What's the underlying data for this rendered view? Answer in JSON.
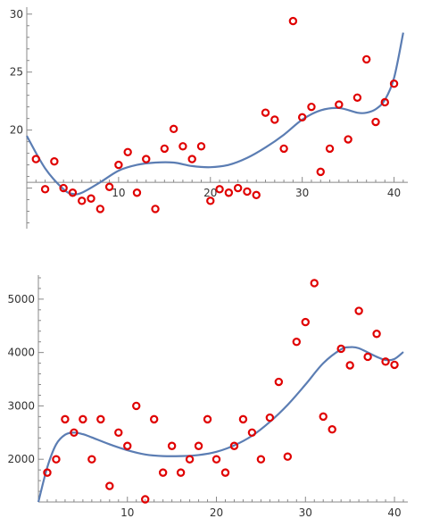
{
  "chart_data": [
    {
      "type": "scatter",
      "xlim": [
        0,
        41.5
      ],
      "ylim": [
        11.5,
        30.6
      ],
      "x_axis_at": 15.5,
      "xticks": [
        10,
        20,
        30,
        40
      ],
      "yticks": [
        20,
        25,
        30
      ],
      "grid": false,
      "points": [
        [
          1,
          17.5
        ],
        [
          2,
          14.9
        ],
        [
          3,
          17.3
        ],
        [
          4,
          15.0
        ],
        [
          5,
          14.6
        ],
        [
          6,
          13.9
        ],
        [
          7,
          14.1
        ],
        [
          8,
          13.2
        ],
        [
          9,
          15.1
        ],
        [
          10,
          17.0
        ],
        [
          11,
          18.1
        ],
        [
          12,
          14.6
        ],
        [
          13,
          17.5
        ],
        [
          14,
          13.2
        ],
        [
          15,
          18.4
        ],
        [
          16,
          20.1
        ],
        [
          17,
          18.6
        ],
        [
          18,
          17.5
        ],
        [
          19,
          18.6
        ],
        [
          20,
          13.9
        ],
        [
          21,
          14.9
        ],
        [
          22,
          14.6
        ],
        [
          23,
          15.0
        ],
        [
          24,
          14.7
        ],
        [
          25,
          14.4
        ],
        [
          26,
          21.5
        ],
        [
          27,
          20.9
        ],
        [
          28,
          18.4
        ],
        [
          29,
          29.4
        ],
        [
          30,
          21.1
        ],
        [
          31,
          22.0
        ],
        [
          32,
          16.4
        ],
        [
          33,
          18.4
        ],
        [
          34,
          22.2
        ],
        [
          35,
          19.2
        ],
        [
          36,
          22.8
        ],
        [
          37,
          26.1
        ],
        [
          38,
          20.7
        ],
        [
          39,
          22.4
        ],
        [
          40,
          24.0
        ]
      ],
      "fit": [
        [
          0,
          19.5
        ],
        [
          2,
          16.7
        ],
        [
          4,
          14.9
        ],
        [
          5,
          14.5
        ],
        [
          6,
          14.6
        ],
        [
          8,
          15.5
        ],
        [
          10,
          16.5
        ],
        [
          12,
          17.0
        ],
        [
          14,
          17.2
        ],
        [
          16,
          17.2
        ],
        [
          18,
          16.9
        ],
        [
          20,
          16.8
        ],
        [
          22,
          17.0
        ],
        [
          24,
          17.6
        ],
        [
          26,
          18.5
        ],
        [
          28,
          19.6
        ],
        [
          30,
          20.9
        ],
        [
          32,
          21.7
        ],
        [
          34,
          21.9
        ],
        [
          36,
          21.5
        ],
        [
          37,
          21.5
        ],
        [
          38,
          21.8
        ],
        [
          39,
          22.6
        ],
        [
          40,
          24.5
        ],
        [
          41,
          28.4
        ]
      ]
    },
    {
      "type": "scatter",
      "xlim": [
        0,
        41.5
      ],
      "ylim": [
        1200,
        5450
      ],
      "x_axis_at": 1200,
      "xticks": [
        10,
        20,
        30,
        40
      ],
      "yticks": [
        2000,
        3000,
        4000,
        5000
      ],
      "grid": false,
      "points": [
        [
          1,
          1750
        ],
        [
          2,
          2000
        ],
        [
          3,
          2750
        ],
        [
          4,
          2500
        ],
        [
          5,
          2750
        ],
        [
          6,
          2000
        ],
        [
          7,
          2750
        ],
        [
          8,
          1500
        ],
        [
          9,
          2500
        ],
        [
          10,
          2250
        ],
        [
          11,
          3000
        ],
        [
          12,
          1250
        ],
        [
          13,
          2750
        ],
        [
          14,
          1750
        ],
        [
          15,
          2250
        ],
        [
          16,
          1750
        ],
        [
          17,
          2000
        ],
        [
          18,
          2250
        ],
        [
          19,
          2750
        ],
        [
          20,
          2000
        ],
        [
          21,
          1750
        ],
        [
          22,
          2250
        ],
        [
          23,
          2750
        ],
        [
          24,
          2500
        ],
        [
          25,
          2000
        ],
        [
          26,
          2780
        ],
        [
          27,
          3450
        ],
        [
          28,
          2050
        ],
        [
          29,
          4200
        ],
        [
          30,
          4570
        ],
        [
          31,
          5300
        ],
        [
          32,
          2800
        ],
        [
          33,
          2560
        ],
        [
          34,
          4070
        ],
        [
          35,
          3760
        ],
        [
          36,
          4780
        ],
        [
          37,
          3920
        ],
        [
          38,
          4350
        ],
        [
          39,
          3830
        ],
        [
          40,
          3770
        ]
      ],
      "fit": [
        [
          0,
          1200
        ],
        [
          1,
          1850
        ],
        [
          2,
          2280
        ],
        [
          3,
          2460
        ],
        [
          4,
          2500
        ],
        [
          5,
          2470
        ],
        [
          6,
          2410
        ],
        [
          8,
          2280
        ],
        [
          10,
          2170
        ],
        [
          12,
          2090
        ],
        [
          14,
          2060
        ],
        [
          16,
          2060
        ],
        [
          18,
          2080
        ],
        [
          20,
          2140
        ],
        [
          22,
          2260
        ],
        [
          24,
          2440
        ],
        [
          26,
          2700
        ],
        [
          28,
          3020
        ],
        [
          30,
          3400
        ],
        [
          32,
          3800
        ],
        [
          34,
          4060
        ],
        [
          35,
          4100
        ],
        [
          36,
          4080
        ],
        [
          38,
          3920
        ],
        [
          39,
          3860
        ],
        [
          40,
          3880
        ],
        [
          41,
          4010
        ]
      ]
    }
  ],
  "colors": {
    "fit_line": "#5b7db3",
    "points": "#e00000"
  }
}
